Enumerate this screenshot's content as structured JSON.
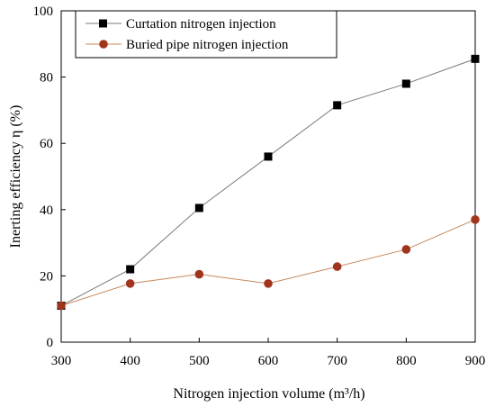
{
  "chart_data": {
    "type": "line",
    "xlabel": "Nitrogen injection volume (m³/h)",
    "ylabel": "Inerting efficiency η (%)",
    "xlim": [
      300,
      900
    ],
    "ylim": [
      0,
      100
    ],
    "xticks": [
      300,
      400,
      500,
      600,
      700,
      800,
      900
    ],
    "yticks": [
      0,
      20,
      40,
      60,
      80,
      100
    ],
    "grid": false,
    "legend_position": "top-left",
    "x": [
      300,
      400,
      500,
      600,
      700,
      800,
      900
    ],
    "series": [
      {
        "name": "Curtation nitrogen injection",
        "values": [
          11,
          22,
          40.5,
          56,
          71.5,
          78,
          85.5
        ],
        "marker": "square",
        "marker_color": "#000000",
        "line_color": "#7a7a7a"
      },
      {
        "name": "Buried pipe nitrogen injection",
        "values": [
          11,
          17.7,
          20.5,
          17.7,
          22.8,
          28,
          37
        ],
        "marker": "circle",
        "marker_color": "#a0341c",
        "line_color": "#c58a5e"
      }
    ]
  }
}
